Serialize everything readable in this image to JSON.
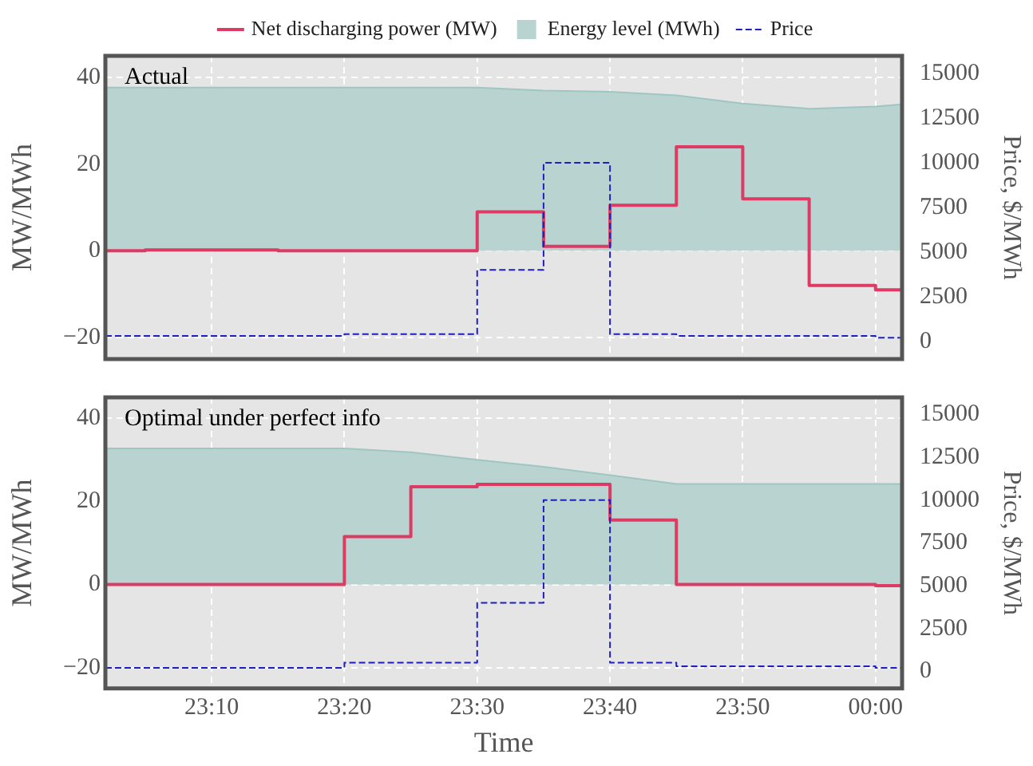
{
  "chart_data": [
    {
      "type": "step",
      "title": "Actual",
      "ylabel": "MW/MWh",
      "y2label": "Price, $/MWh",
      "legend": "top",
      "grid": true,
      "tick_labels": "y",
      "line_style": "solid",
      "marker": "none",
      "xlim": [
        23.0333,
        24.0333
      ],
      "xticks": [
        {
          "value": 23.1667,
          "label": null
        },
        {
          "value": 23.3333,
          "label": null
        },
        {
          "value": 23.5,
          "label": null
        },
        {
          "value": 23.6667,
          "label": null
        },
        {
          "value": 23.8333,
          "label": null
        },
        {
          "value": 24,
          "label": null
        }
      ],
      "ylim": [
        -25,
        45
      ],
      "yticks": [
        -20,
        0,
        20,
        40
      ],
      "y2lim": [
        -1000,
        16000
      ],
      "y2ticks": [
        0,
        2500,
        5000,
        7500,
        10000,
        12500,
        15000
      ],
      "series": [
        {
          "name": "Net discharging power (MW)",
          "color": "#dc3c64",
          "line_style": "solid",
          "x": [
            23.0333,
            23.0833,
            23.25,
            23.5,
            23.5833,
            23.6667,
            23.75,
            23.8333,
            23.9167,
            24,
            24.0333
          ],
          "values": [
            0,
            0.2,
            0,
            9,
            1,
            10.5,
            24,
            12,
            -8,
            -9,
            -9
          ]
        },
        {
          "name": "Energy level (MWh)",
          "type": "area",
          "color": "#b9d3d1",
          "x": [
            23.0333,
            23.5,
            23.5833,
            23.6667,
            23.75,
            23.8333,
            23.9167,
            24,
            24.0333
          ],
          "values": [
            37.7,
            37.7,
            37,
            36.7,
            35.9,
            34,
            32.8,
            33.3,
            33.8
          ]
        },
        {
          "name": "Price",
          "axis": "y2",
          "color": "#1f1fbf",
          "line_style": "dashed",
          "x": [
            23.0333,
            23.3333,
            23.5,
            23.5833,
            23.6667,
            23.75,
            24,
            24.0333
          ],
          "values": [
            300,
            400,
            4000,
            10000,
            400,
            300,
            200,
            200
          ]
        }
      ]
    },
    {
      "type": "step",
      "title": "Optimal under perfect info",
      "xlabel": "Time",
      "ylabel": "MW/MWh",
      "y2label": "Price, $/MWh",
      "grid": true,
      "line_style": "solid",
      "marker": "none",
      "xlim": [
        23.0333,
        24.0333
      ],
      "xticks": [
        {
          "value": 23.1667,
          "label": "23:10"
        },
        {
          "value": 23.3333,
          "label": "23:20"
        },
        {
          "value": 23.5,
          "label": "23:30"
        },
        {
          "value": 23.6667,
          "label": "23:40"
        },
        {
          "value": 23.8333,
          "label": "23:50"
        },
        {
          "value": 24,
          "label": "00:00"
        }
      ],
      "ylim": [
        -25,
        45
      ],
      "yticks": [
        -20,
        0,
        20,
        40
      ],
      "y2lim": [
        -1000,
        16000
      ],
      "y2ticks": [
        0,
        2500,
        5000,
        7500,
        10000,
        12500,
        15000
      ],
      "series": [
        {
          "color": "#dc3c64",
          "line_style": "solid",
          "x": [
            23.0333,
            23.3333,
            23.4167,
            23.5,
            23.6667,
            23.75,
            24,
            24.0333
          ],
          "values": [
            0,
            11.5,
            23.5,
            24.1,
            15.5,
            0,
            -0.3,
            -0.3
          ]
        },
        {
          "type": "area",
          "color": "#b9d3d1",
          "x": [
            23.0333,
            23.3333,
            23.4167,
            23.5,
            23.5833,
            23.6667,
            23.75,
            24.0333
          ],
          "values": [
            32.7,
            32.7,
            31.8,
            30,
            28.3,
            26.3,
            24.2,
            24.2
          ]
        },
        {
          "axis": "y2",
          "color": "#1f1fbf",
          "line_style": "dashed",
          "x": [
            23.0333,
            23.3333,
            23.5,
            23.5833,
            23.6667,
            23.75,
            24,
            24.0333
          ],
          "values": [
            200,
            500,
            4000,
            10000,
            500,
            300,
            200,
            200
          ]
        }
      ]
    }
  ]
}
